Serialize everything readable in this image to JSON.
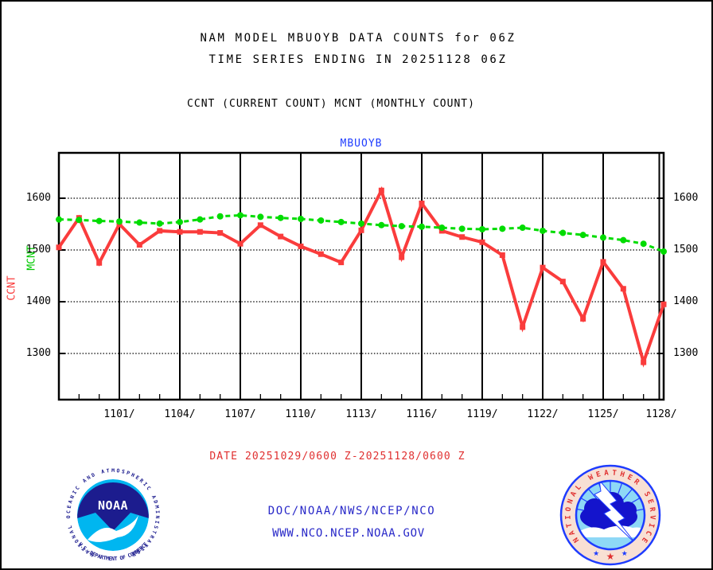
{
  "header": {
    "title_line1": "NAM MODEL MBUOYB DATA COUNTS for 06Z",
    "title_line2": "TIME SERIES ENDING IN 20251128 06Z",
    "legend_line": "CCNT (CURRENT COUNT) MCNT (MONTHLY COUNT)"
  },
  "chart": {
    "title": "MBUOYB",
    "left_axis_series_labels": {
      "ccnt": "CCNT",
      "mcnt": "MCNT"
    },
    "y_ticks": [
      "1600",
      "1500",
      "1400",
      "1300"
    ],
    "x_ticks": [
      "1101/",
      "1104/",
      "1107/",
      "1110/",
      "1113/",
      "1116/",
      "1119/",
      "1122/",
      "1125/",
      "1128/"
    ]
  },
  "chart_data": {
    "type": "line",
    "title": "MBUOYB",
    "x": [
      "1029",
      "1030",
      "1031",
      "1101",
      "1102",
      "1103",
      "1104",
      "1105",
      "1106",
      "1107",
      "1108",
      "1109",
      "1110",
      "1111",
      "1112",
      "1113",
      "1114",
      "1115",
      "1116",
      "1117",
      "1118",
      "1119",
      "1120",
      "1121",
      "1122",
      "1123",
      "1124",
      "1125",
      "1126",
      "1127",
      "1128"
    ],
    "x_major_tick_labels": [
      "1101/",
      "1104/",
      "1107/",
      "1110/",
      "1113/",
      "1116/",
      "1119/",
      "1122/",
      "1125/",
      "1128/"
    ],
    "series": [
      {
        "name": "CCNT",
        "style": "solid",
        "marker": "square",
        "color": "#fa3c3c",
        "values": [
          1505,
          1562,
          1475,
          1550,
          1510,
          1537,
          1535,
          1535,
          1533,
          1512,
          1548,
          1526,
          1507,
          1492,
          1476,
          1538,
          1615,
          1486,
          1590,
          1537,
          1525,
          1515,
          1490,
          1351,
          1466,
          1439,
          1367,
          1477,
          1425,
          1283,
          1395
        ]
      },
      {
        "name": "MCNT",
        "style": "dashed",
        "marker": "circle",
        "color": "#00dc00",
        "values": [
          1559,
          1558,
          1556,
          1555,
          1553,
          1551,
          1554,
          1559,
          1565,
          1567,
          1564,
          1562,
          1560,
          1557,
          1554,
          1551,
          1548,
          1546,
          1545,
          1543,
          1541,
          1540,
          1541,
          1543,
          1537,
          1533,
          1529,
          1524,
          1519,
          1512,
          1497
        ]
      }
    ],
    "ylabel": "CCNT MCNT",
    "xlabel": "",
    "ylim": [
      1211,
      1688
    ],
    "y_gridlines": [
      1600,
      1500,
      1400,
      1300
    ],
    "grid": "on",
    "legend_position": "none"
  },
  "footer": {
    "date_range": "DATE 20251029/0600 Z-20251128/0600 Z",
    "org_line": "DOC/NOAA/NWS/NCEP/NCO",
    "url_line": "WWW.NCO.NCEP.NOAA.GOV"
  },
  "logos": {
    "noaa": {
      "ring_text_top": "NATIONAL OCEANIC AND ATMOSPHERIC ADMINISTRATION",
      "ring_text_bottom": "U.S. DEPARTMENT OF COMMERCE",
      "acronym": "NOAA",
      "dark_blue": "#1c1c8e",
      "light_blue": "#00b6f0"
    },
    "nws": {
      "ring_text": "NATIONAL WEATHER SERVICE",
      "ring_bg": "#f8e0d4",
      "ring_letter_color": "#e03030",
      "border_blue": "#1e3cff",
      "inner_bg": "#8ed8f6",
      "cloud_blue": "#1414cc"
    }
  },
  "colors": {
    "ccnt_red": "#fa3c3c",
    "mcnt_green": "#00dc00",
    "title_blue": "#1e3cff",
    "axis_black": "#000000"
  }
}
